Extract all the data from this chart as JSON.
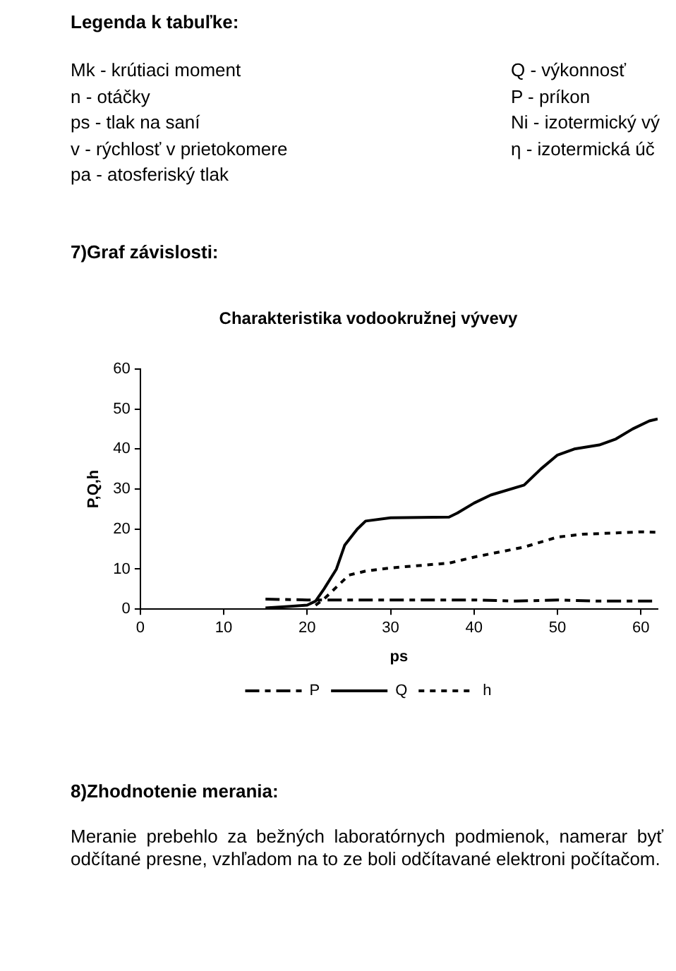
{
  "chart_data": {
    "type": "line",
    "title": "Charakteristika vodookružnej vývevy",
    "xlabel": "ps",
    "ylabel": "P,Q,h",
    "xlim": [
      0,
      62
    ],
    "xticks": [
      0,
      10,
      20,
      30,
      40,
      50,
      60
    ],
    "ylim": [
      0,
      60
    ],
    "yticks": [
      0,
      10,
      20,
      30,
      40,
      50,
      60
    ],
    "grid": false,
    "legend": "bottom",
    "marker": "none",
    "annotations": [
      "Legenda k tabuľke:",
      "Mk - krútiaci moment",
      "n - otáčky",
      "ps - tlak na saní",
      "v - rýchlosť v prietokomere",
      "pa - atosferiský tlak",
      "Q - výkonnosť",
      "P - príkon",
      "Ni - izotermický vý",
      "η - izotermická úč",
      "7)Graf závislosti:",
      "8)Zhodnotenie merania:",
      "Meranie prebehlo za bežných laboratórnych podmienok, namerar byť odčítané presne, vzhľadom na to ze boli odčítavané elektroni počítačom."
    ],
    "series": [
      {
        "name": "P",
        "color": "#000000",
        "line_style": "dashed",
        "x": [
          15,
          20,
          25,
          30,
          35,
          40,
          45,
          50,
          55,
          62
        ],
        "values": [
          2.5,
          2.3,
          2.3,
          2.3,
          2.3,
          2.3,
          2,
          2.3,
          2,
          2
        ]
      },
      {
        "name": "Q",
        "color": "#000000",
        "line_style": "solid",
        "x": [
          15,
          18,
          20,
          21,
          22,
          23.5,
          24.5,
          26,
          27,
          30,
          37,
          38,
          40,
          42,
          46,
          48,
          50,
          52,
          55,
          57,
          59,
          61,
          62
        ],
        "values": [
          0.3,
          0.7,
          1,
          2,
          5,
          10,
          16,
          20,
          22,
          22.8,
          23,
          24,
          26.5,
          28.5,
          31,
          35,
          38.5,
          40,
          41,
          42.5,
          45,
          47,
          47.5
        ]
      },
      {
        "name": "h",
        "color": "#000000",
        "line_style": "dotted",
        "x": [
          21,
          22,
          23,
          25,
          27,
          30,
          37,
          40,
          46,
          50,
          53,
          60,
          62
        ],
        "values": [
          1,
          2.5,
          4.5,
          8.5,
          9.5,
          10.3,
          11.5,
          13,
          15.5,
          18,
          18.7,
          19.3,
          19.2
        ]
      }
    ]
  }
}
